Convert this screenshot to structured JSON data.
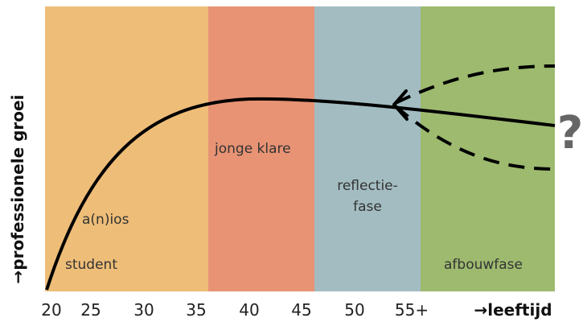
{
  "chart_data": {
    "type": "diagram",
    "xlabel": "→leeftijd",
    "ylabel": "→professionele groei",
    "x_ticks": [
      "20",
      "25",
      "30",
      "35",
      "40",
      "45",
      "50",
      "55+"
    ],
    "phases": [
      {
        "id": "student",
        "labels": [
          "a(n)ios",
          "student"
        ],
        "color": "#EEBD78"
      },
      {
        "id": "jonge-klare",
        "labels": [
          "jonge klare"
        ],
        "color": "#E79374"
      },
      {
        "id": "reflectie",
        "labels": [
          "reflectie-",
          "fase"
        ],
        "color": "#A3BCC1"
      },
      {
        "id": "afbouw",
        "labels": [
          "afbouwfase"
        ],
        "color": "#9DBA6F"
      }
    ],
    "question_mark": "?"
  }
}
